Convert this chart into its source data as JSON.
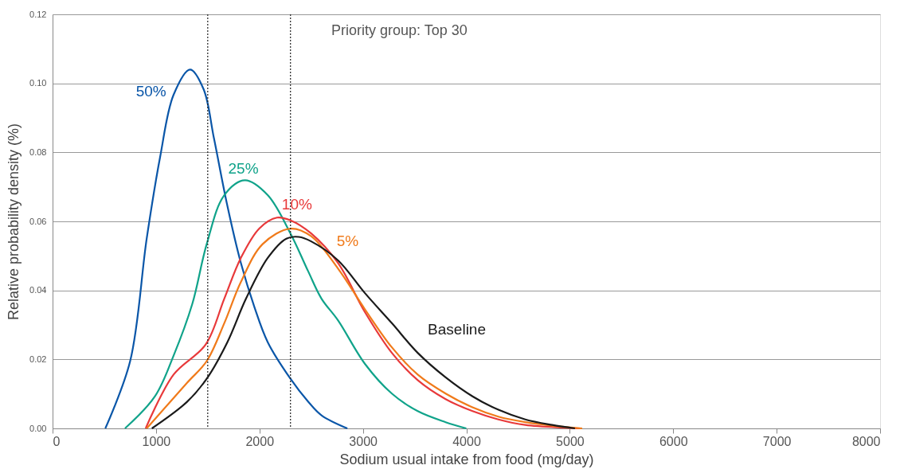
{
  "chart_data": {
    "type": "line",
    "annotations": [
      "Priority group: Top 30"
    ],
    "xlabel": "Sodium usual intake from food (mg/day)",
    "ylabel": "Relative probability density (%)",
    "xlim": [
      0,
      8000
    ],
    "xticks": [
      0,
      1000,
      2000,
      3000,
      4000,
      5000,
      6000,
      7000,
      8000
    ],
    "ylim": [
      0,
      0.12
    ],
    "yticks": [
      {
        "value": 0,
        "label": "0.00"
      },
      {
        "value": 0.02,
        "label": "0.02"
      },
      {
        "value": 0.04,
        "label": "0.04"
      },
      {
        "value": 0.06,
        "label": "0.06"
      },
      {
        "value": 0.08,
        "label": "0.08"
      },
      {
        "value": 0.1,
        "label": "0.10"
      },
      {
        "value": 0.12,
        "label": "0.12"
      }
    ],
    "grid": "y",
    "legend": false,
    "marker": "none",
    "line_style": "solid",
    "ref_lines": [
      {
        "axis": "x",
        "value": 1500,
        "color": "#222222",
        "line_style": "dotted"
      },
      {
        "axis": "x",
        "value": 2300,
        "color": "#222222",
        "line_style": "dotted"
      }
    ],
    "series": [
      {
        "name": "50%",
        "color": "#0a56a8",
        "x": [
          510,
          750,
          910,
          1040,
          1170,
          1330,
          1460,
          1560,
          1690,
          1820,
          1950,
          2080,
          2300,
          2470,
          2600,
          2850
        ],
        "values": [
          0,
          0.0195,
          0.055,
          0.0787,
          0.0967,
          0.104,
          0.0983,
          0.0841,
          0.0645,
          0.048,
          0.0353,
          0.025,
          0.0144,
          0.0078,
          0.0038,
          0
        ]
      },
      {
        "name": "25%",
        "color": "#10a38a",
        "x": [
          700,
          990,
          1170,
          1350,
          1490,
          1660,
          1860,
          2080,
          2300,
          2470,
          2600,
          2760,
          3020,
          3280,
          3530,
          3800,
          4000
        ],
        "values": [
          0,
          0.0093,
          0.0211,
          0.036,
          0.0534,
          0.0676,
          0.0719,
          0.0676,
          0.0565,
          0.0456,
          0.0376,
          0.0313,
          0.0187,
          0.0101,
          0.005,
          0.0018,
          0
        ]
      },
      {
        "name": "10%",
        "color": "#e8393a",
        "x": [
          900,
          1170,
          1480,
          1660,
          1820,
          2000,
          2170,
          2300,
          2500,
          2760,
          3020,
          3280,
          3530,
          3800,
          4060,
          4310,
          4570,
          4960,
          5100
        ],
        "values": [
          0,
          0.0156,
          0.0243,
          0.0376,
          0.0494,
          0.058,
          0.0611,
          0.0603,
          0.0565,
          0.0479,
          0.0337,
          0.0219,
          0.014,
          0.0085,
          0.005,
          0.0026,
          0.001,
          0.0002,
          0
        ]
      },
      {
        "name": "5%",
        "color": "#f07a1a",
        "x": [
          910,
          1300,
          1490,
          1660,
          1820,
          2030,
          2300,
          2500,
          2760,
          3020,
          3280,
          3530,
          3800,
          4060,
          4310,
          4570,
          4830,
          5120
        ],
        "values": [
          0,
          0.0132,
          0.0195,
          0.0305,
          0.0424,
          0.0534,
          0.0579,
          0.0557,
          0.0463,
          0.0345,
          0.0235,
          0.0156,
          0.0101,
          0.0061,
          0.0034,
          0.0018,
          0.0008,
          0
        ]
      },
      {
        "name": "Baseline",
        "color": "#1a1a1a",
        "x": [
          960,
          1300,
          1490,
          1690,
          1870,
          2080,
          2260,
          2380,
          2500,
          2760,
          3020,
          3280,
          3530,
          3800,
          4060,
          4310,
          4570,
          4830,
          5050
        ],
        "values": [
          0,
          0.0077,
          0.0144,
          0.025,
          0.0376,
          0.0494,
          0.055,
          0.0555,
          0.0542,
          0.0487,
          0.0392,
          0.0305,
          0.0219,
          0.0148,
          0.0093,
          0.0054,
          0.0026,
          0.001,
          0
        ]
      }
    ]
  }
}
